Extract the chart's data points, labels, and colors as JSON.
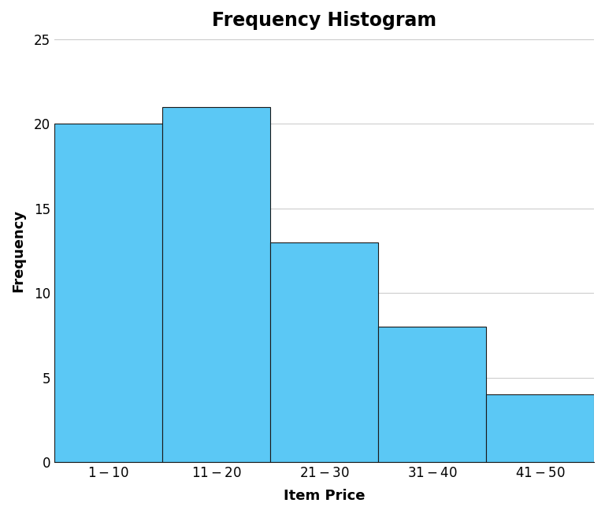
{
  "title": "Frequency Histogram",
  "xlabel": "Item Price",
  "ylabel": "Frequency",
  "categories": [
    "$1 - $10",
    "$11 - $20",
    "$21 - $30",
    "$31 - $40",
    "$41 - $50"
  ],
  "values": [
    20,
    21,
    13,
    8,
    4
  ],
  "bar_color": "#5BC8F5",
  "bar_edge_color": "#1a1a1a",
  "bar_edge_width": 0.8,
  "ylim": [
    0,
    25
  ],
  "yticks": [
    0,
    5,
    10,
    15,
    20,
    25
  ],
  "title_fontsize": 17,
  "title_fontweight": "bold",
  "axis_label_fontsize": 13,
  "axis_label_fontweight": "bold",
  "tick_fontsize": 12,
  "background_color": "#ffffff",
  "grid_color": "#c8c8c8",
  "grid_linewidth": 0.7
}
